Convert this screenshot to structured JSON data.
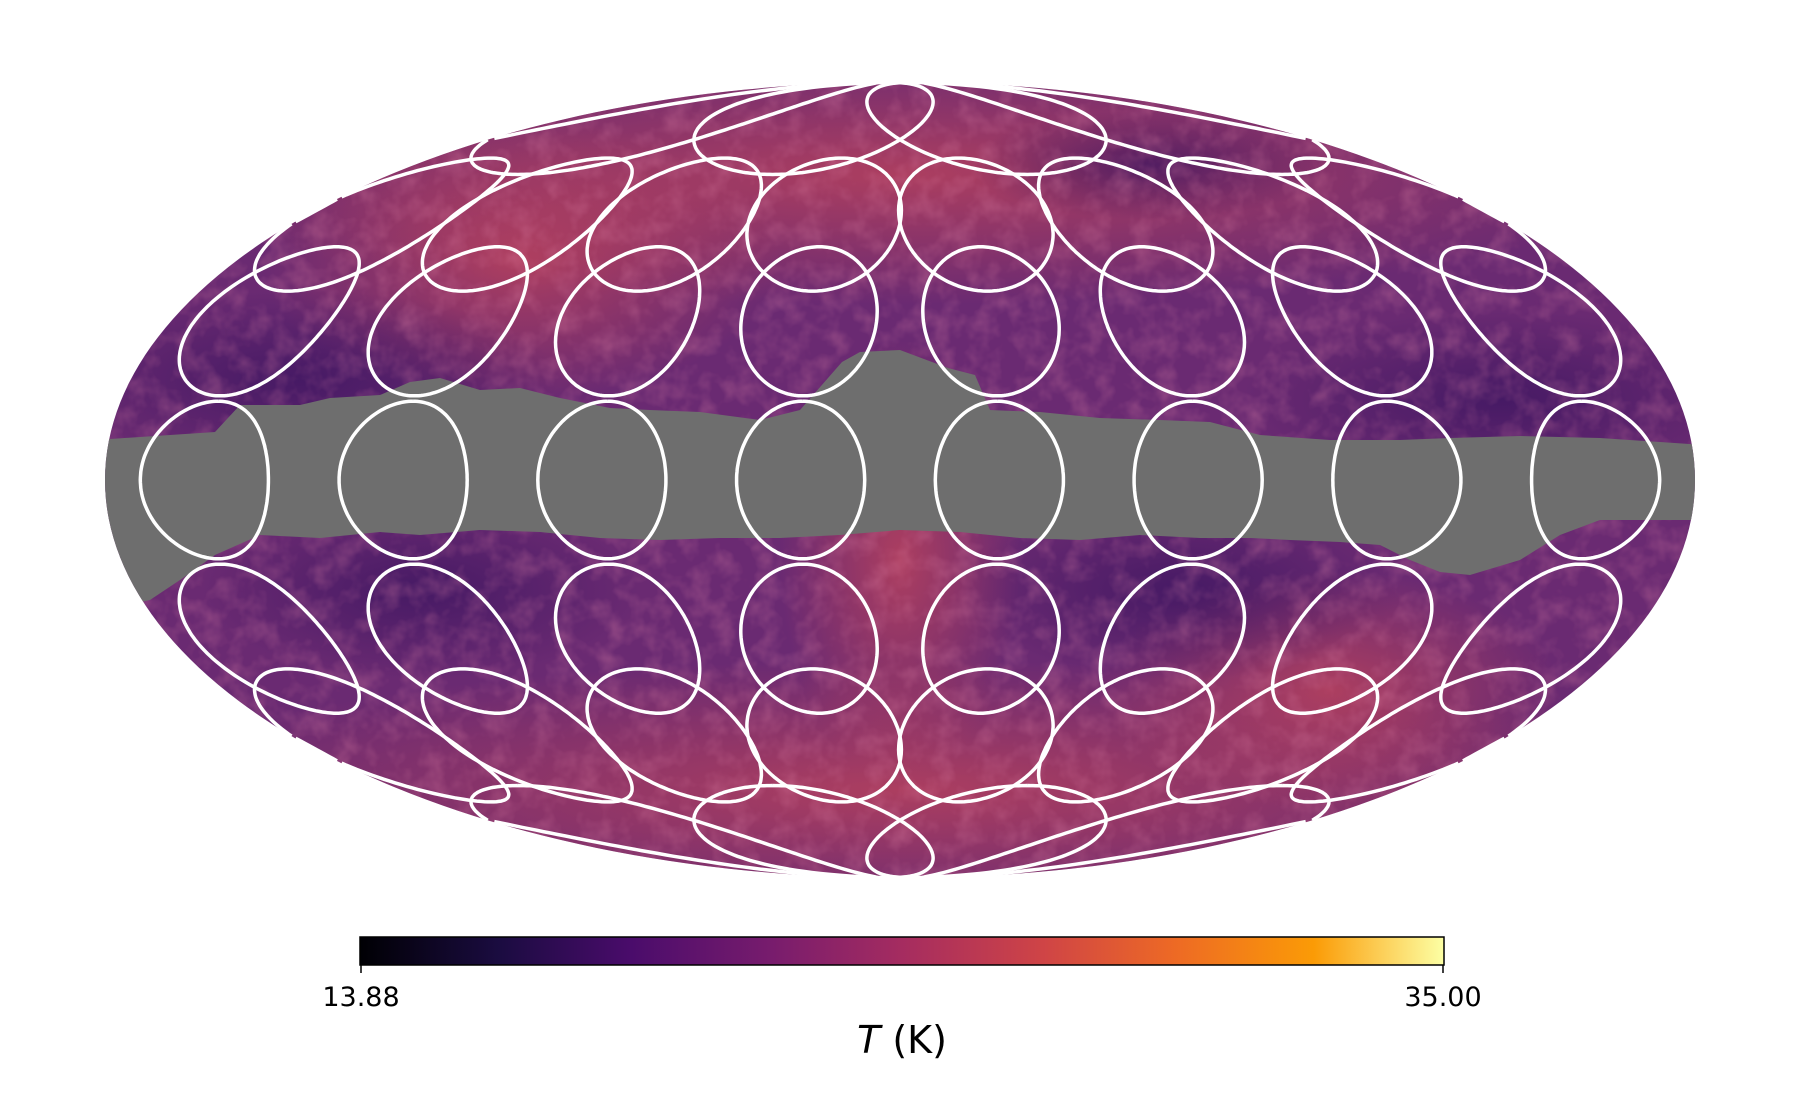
{
  "map": {
    "projection": "mollweide",
    "mask_color": "#6e6e6e",
    "region_outline_color": "#ffffff",
    "colormap": "inferno",
    "rows": [
      {
        "latitude_deg": 75,
        "count": 4
      },
      {
        "latitude_deg": 50,
        "count": 8
      },
      {
        "latitude_deg": 30,
        "count": 8
      },
      {
        "latitude_deg": 0,
        "count": 8
      },
      {
        "latitude_deg": -30,
        "count": 8
      },
      {
        "latitude_deg": -50,
        "count": 8
      },
      {
        "latitude_deg": -75,
        "count": 4
      }
    ]
  },
  "colorbar": {
    "min_label": "13.88",
    "max_label": "35.00",
    "min": 13.88,
    "max": 35.0,
    "axis_label_symbol": "T",
    "axis_label_unit": " (K)"
  }
}
